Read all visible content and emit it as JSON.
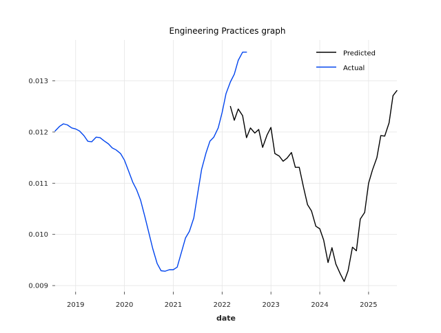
{
  "chart_data": {
    "type": "line",
    "title": "Engineering Practices graph",
    "xlabel": "date",
    "ylabel": "",
    "grid": true,
    "legend_position": "top-right",
    "xlim": [
      2018.58,
      2025.58
    ],
    "ylim": [
      0.00888,
      0.0138
    ],
    "x_ticks": [
      2019,
      2020,
      2021,
      2022,
      2023,
      2024,
      2025
    ],
    "x_tick_labels": [
      "2019",
      "2020",
      "2021",
      "2022",
      "2023",
      "2024",
      "2025"
    ],
    "y_ticks": [
      0.009,
      0.01,
      0.011,
      0.012,
      0.013
    ],
    "y_tick_labels": [
      "0.009",
      "0.010",
      "0.011",
      "0.012",
      "0.013"
    ],
    "series": [
      {
        "name": "Predicted",
        "color": "#000000",
        "x": [
          2022.17,
          2022.25,
          2022.33,
          2022.42,
          2022.5,
          2022.58,
          2022.67,
          2022.75,
          2022.83,
          2022.92,
          2023.0,
          2023.08,
          2023.17,
          2023.25,
          2023.33,
          2023.42,
          2023.5,
          2023.58,
          2023.67,
          2023.75,
          2023.83,
          2023.92,
          2024.0,
          2024.08,
          2024.17,
          2024.25,
          2024.33,
          2024.42,
          2024.5,
          2024.58,
          2024.67,
          2024.75,
          2024.83,
          2024.92,
          2025.0,
          2025.08,
          2025.17,
          2025.25,
          2025.33,
          2025.42,
          2025.5,
          2025.58
        ],
        "y": [
          0.0125,
          0.01223,
          0.01245,
          0.01232,
          0.01189,
          0.01208,
          0.01198,
          0.01205,
          0.0117,
          0.01194,
          0.01209,
          0.01158,
          0.01153,
          0.01143,
          0.01149,
          0.0116,
          0.01131,
          0.01131,
          0.01091,
          0.01058,
          0.01046,
          0.01016,
          0.01011,
          0.00989,
          0.00945,
          0.00974,
          0.00942,
          0.00923,
          0.00908,
          0.00929,
          0.00975,
          0.00968,
          0.0103,
          0.01043,
          0.011,
          0.01126,
          0.0115,
          0.01193,
          0.01192,
          0.01218,
          0.01271,
          0.01281
        ]
      },
      {
        "name": "Actual",
        "color": "#0044ee",
        "x": [
          2018.58,
          2018.67,
          2018.75,
          2018.83,
          2018.92,
          2019.0,
          2019.08,
          2019.17,
          2019.25,
          2019.33,
          2019.42,
          2019.5,
          2019.58,
          2019.67,
          2019.75,
          2019.83,
          2019.92,
          2020.0,
          2020.08,
          2020.17,
          2020.25,
          2020.33,
          2020.42,
          2020.5,
          2020.58,
          2020.67,
          2020.75,
          2020.83,
          2020.92,
          2021.0,
          2021.08,
          2021.17,
          2021.25,
          2021.33,
          2021.42,
          2021.5,
          2021.58,
          2021.67,
          2021.75,
          2021.83,
          2021.92,
          2022.0,
          2022.08,
          2022.17,
          2022.25,
          2022.33,
          2022.42,
          2022.5
        ],
        "y": [
          0.01202,
          0.01211,
          0.01216,
          0.01214,
          0.01208,
          0.01206,
          0.01202,
          0.01193,
          0.01182,
          0.01181,
          0.0119,
          0.01189,
          0.01183,
          0.01177,
          0.01169,
          0.01165,
          0.01158,
          0.01145,
          0.01125,
          0.01102,
          0.01087,
          0.01067,
          0.01034,
          0.01003,
          0.00972,
          0.00943,
          0.00929,
          0.00928,
          0.00931,
          0.00931,
          0.00936,
          0.00966,
          0.00993,
          0.01006,
          0.01032,
          0.0108,
          0.01127,
          0.01159,
          0.01182,
          0.0119,
          0.01208,
          0.01238,
          0.01275,
          0.01298,
          0.01313,
          0.0134,
          0.01356,
          0.01356
        ]
      }
    ]
  }
}
